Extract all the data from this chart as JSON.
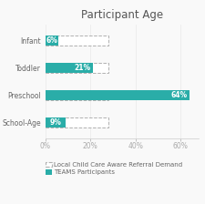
{
  "title": "Participant Age",
  "categories": [
    "Infant",
    "Toddler",
    "Preschool",
    "School-Age"
  ],
  "teams_values": [
    6,
    21,
    64,
    9
  ],
  "demand_values": [
    28,
    28,
    28,
    28
  ],
  "teams_color": "#2aada8",
  "demand_color": "#ffffff",
  "demand_edge_color": "#b0b0b0",
  "xlim": [
    0,
    68
  ],
  "xticks": [
    0,
    20,
    40,
    60
  ],
  "xticklabels": [
    "0%",
    "20%",
    "40%",
    "60%"
  ],
  "legend_demand_label": "Local Child Care Aware Referral Demand",
  "legend_teams_label": "TEAMS Participants",
  "bar_height": 0.38,
  "label_fontsize": 5.5,
  "title_fontsize": 8.5,
  "tick_fontsize": 5.5,
  "legend_fontsize": 5.0,
  "bg_color": "#f9f9f9"
}
